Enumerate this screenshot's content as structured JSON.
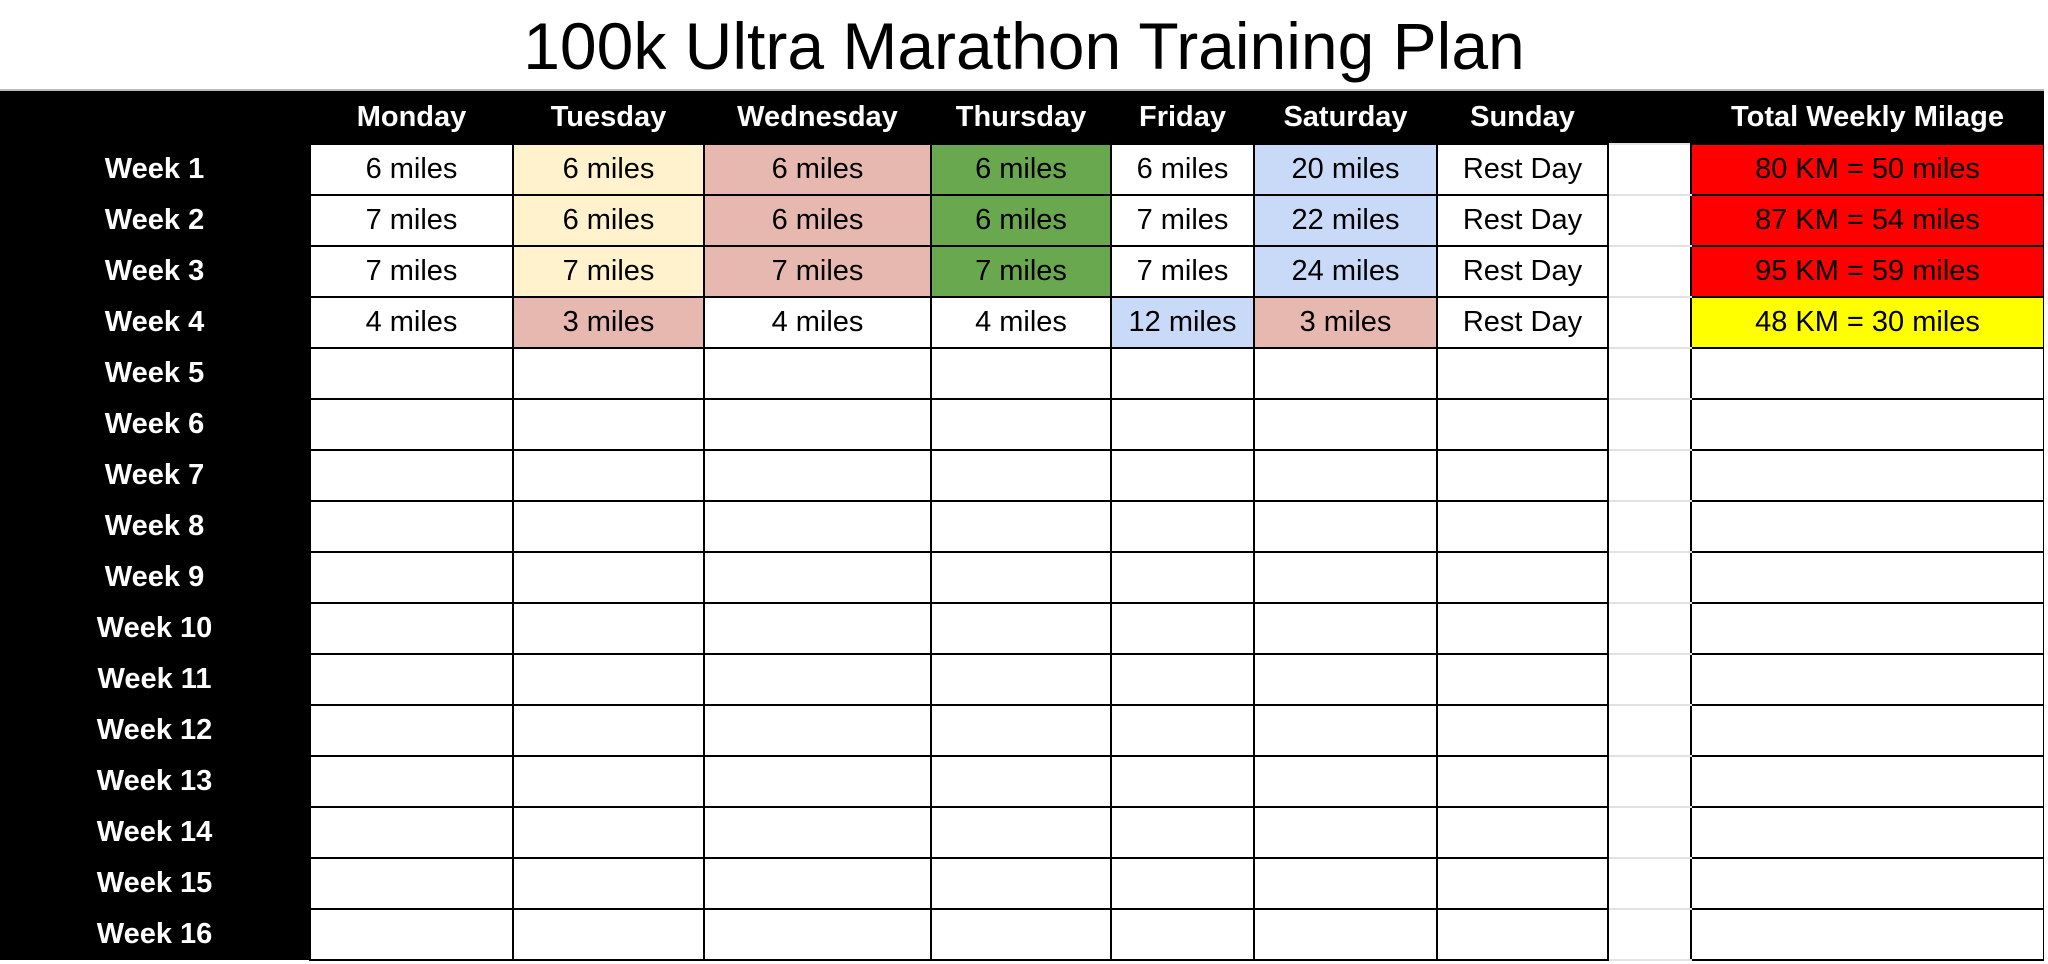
{
  "title": "100k Ultra Marathon Training Plan",
  "headers": [
    "Monday",
    "Tuesday",
    "Wednesday",
    "Thursday",
    "Friday",
    "Saturday",
    "Sunday",
    "Total Weekly Milage"
  ],
  "colors": {
    "yellow_light": "#fff2cc",
    "pink": "#e6b8af",
    "green": "#6aa84f",
    "blue": "#c9daf8",
    "red": "#ff0000",
    "yellow": "#ffff00",
    "white": "#ffffff"
  },
  "weeks": [
    {
      "label": "Week 1",
      "days": [
        {
          "text": "6 miles",
          "color": "white"
        },
        {
          "text": "6 miles",
          "color": "yellow_light"
        },
        {
          "text": "6 miles",
          "color": "pink"
        },
        {
          "text": "6 miles",
          "color": "green"
        },
        {
          "text": "6 miles",
          "color": "white"
        },
        {
          "text": "20 miles",
          "color": "blue"
        },
        {
          "text": "Rest Day",
          "color": "white"
        }
      ],
      "total": {
        "text": "80 KM = 50 miles",
        "color": "red"
      }
    },
    {
      "label": "Week 2",
      "days": [
        {
          "text": "7 miles",
          "color": "white"
        },
        {
          "text": "6 miles",
          "color": "yellow_light"
        },
        {
          "text": "6 miles",
          "color": "pink"
        },
        {
          "text": "6 miles",
          "color": "green"
        },
        {
          "text": "7 miles",
          "color": "white"
        },
        {
          "text": "22 miles",
          "color": "blue"
        },
        {
          "text": "Rest Day",
          "color": "white"
        }
      ],
      "total": {
        "text": "87 KM = 54 miles",
        "color": "red"
      }
    },
    {
      "label": "Week 3",
      "days": [
        {
          "text": "7 miles",
          "color": "white"
        },
        {
          "text": "7 miles",
          "color": "yellow_light"
        },
        {
          "text": "7 miles",
          "color": "pink"
        },
        {
          "text": "7 miles",
          "color": "green"
        },
        {
          "text": "7 miles",
          "color": "white"
        },
        {
          "text": "24 miles",
          "color": "blue"
        },
        {
          "text": "Rest Day",
          "color": "white"
        }
      ],
      "total": {
        "text": "95 KM = 59 miles",
        "color": "red"
      }
    },
    {
      "label": "Week 4",
      "days": [
        {
          "text": "4 miles",
          "color": "white"
        },
        {
          "text": "3 miles",
          "color": "pink"
        },
        {
          "text": "4 miles",
          "color": "white"
        },
        {
          "text": "4 miles",
          "color": "white"
        },
        {
          "text": "12 miles",
          "color": "blue"
        },
        {
          "text": "3 miles",
          "color": "pink"
        },
        {
          "text": "Rest Day",
          "color": "white"
        }
      ],
      "total": {
        "text": "48 KM = 30 miles",
        "color": "yellow"
      }
    },
    {
      "label": "Week 5"
    },
    {
      "label": "Week 6"
    },
    {
      "label": "Week 7"
    },
    {
      "label": "Week 8"
    },
    {
      "label": "Week 9"
    },
    {
      "label": "Week 10"
    },
    {
      "label": "Week 11"
    },
    {
      "label": "Week 12"
    },
    {
      "label": "Week 13"
    },
    {
      "label": "Week 14"
    },
    {
      "label": "Week 15"
    },
    {
      "label": "Week 16"
    }
  ]
}
